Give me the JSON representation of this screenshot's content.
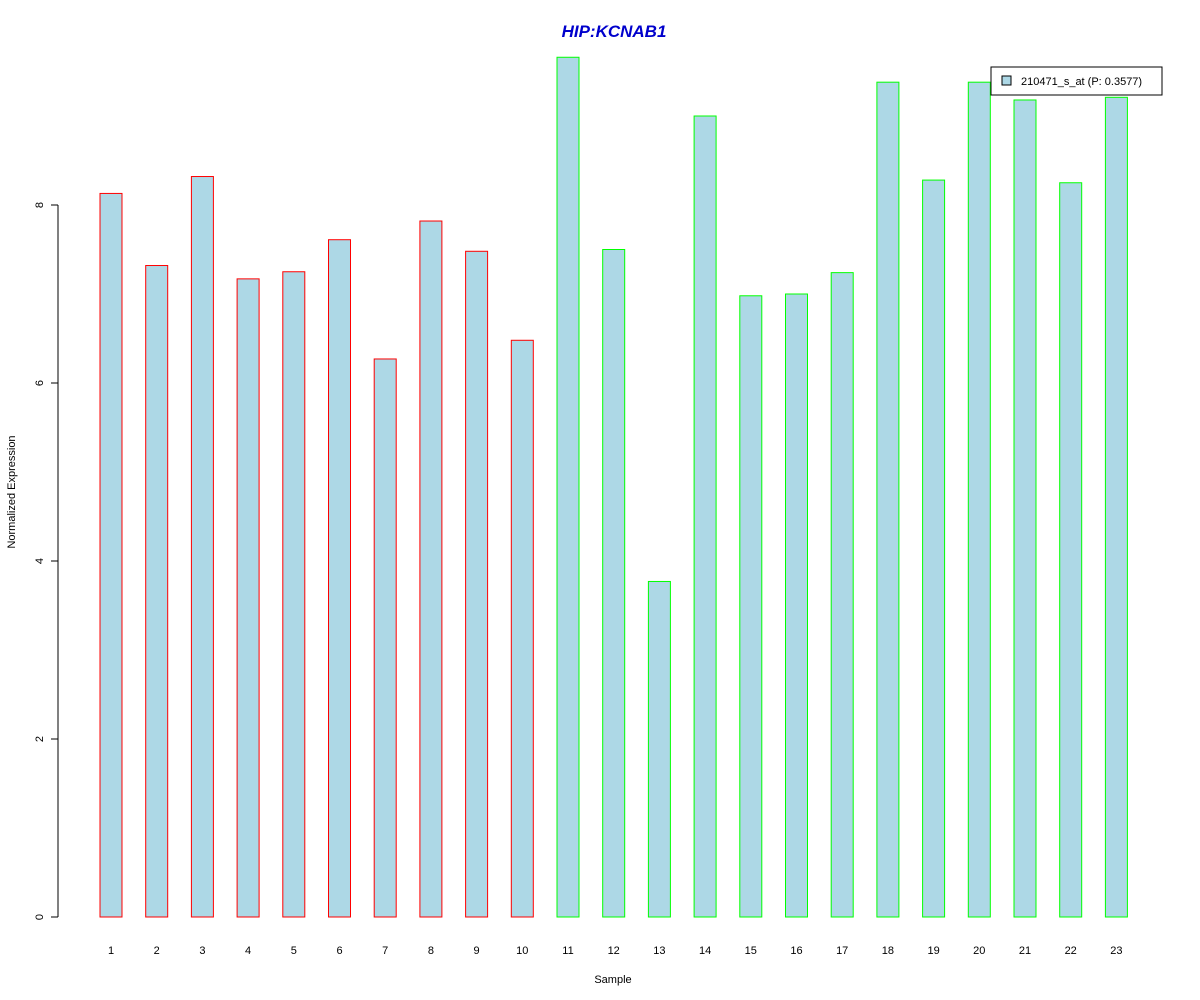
{
  "colors": {
    "bar_fill": "#add8e6",
    "group1_border": "#ff0000",
    "group2_border": "#00ff00",
    "title": "#0000cc",
    "axis": "#000000"
  },
  "chart_data": {
    "type": "bar",
    "title": "HIP:KCNAB1",
    "xlabel": "Sample",
    "ylabel": "Normalized Expression",
    "ylim": [
      0,
      9.7
    ],
    "yticks": [
      0,
      2,
      4,
      6,
      8
    ],
    "categories": [
      "1",
      "2",
      "3",
      "4",
      "5",
      "6",
      "7",
      "8",
      "9",
      "10",
      "11",
      "12",
      "13",
      "14",
      "15",
      "16",
      "17",
      "18",
      "19",
      "20",
      "21",
      "22",
      "23"
    ],
    "series": [
      {
        "name": "210471_s_at (P: 0.3577)",
        "values": [
          8.13,
          7.32,
          8.32,
          7.17,
          7.25,
          7.61,
          6.27,
          7.82,
          7.48,
          6.48,
          9.66,
          7.5,
          3.77,
          9.0,
          6.98,
          7.0,
          7.24,
          9.38,
          8.28,
          9.38,
          9.18,
          8.25,
          9.21
        ]
      }
    ],
    "groups": [
      1,
      1,
      1,
      1,
      1,
      1,
      1,
      1,
      1,
      1,
      2,
      2,
      2,
      2,
      2,
      2,
      2,
      2,
      2,
      2,
      2,
      2,
      2
    ],
    "legend_position": "top-right",
    "grid": false
  }
}
